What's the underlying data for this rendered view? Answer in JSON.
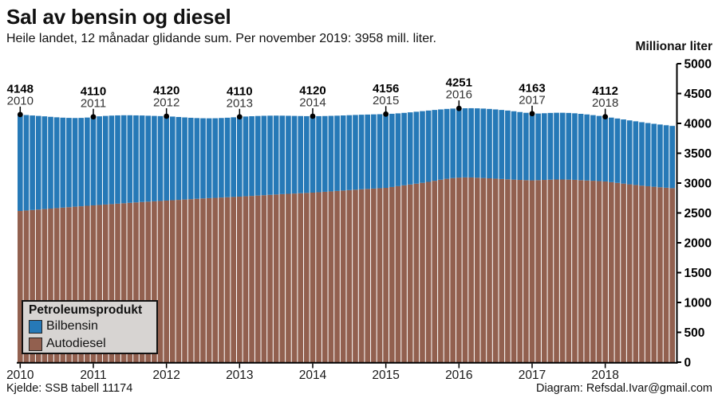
{
  "header": {
    "title": "Sal av bensin og diesel",
    "subtitle": "Heile landet, 12 månadar glidande sum. Per november 2019: 3958 mill. liter."
  },
  "y_axis": {
    "title": "Millionar liter",
    "tick_values": [
      0,
      500,
      1000,
      1500,
      2000,
      2500,
      3000,
      3500,
      4000,
      4500,
      5000
    ],
    "max": 5000
  },
  "x_axis": {
    "year_labels": [
      "2010",
      "2011",
      "2012",
      "2013",
      "2014",
      "2015",
      "2016",
      "2017",
      "2018"
    ]
  },
  "legend": {
    "title": "Petroleumsprodukt",
    "items": [
      {
        "label": "Bilbensin",
        "color": "#2679b7"
      },
      {
        "label": "Autodiesel",
        "color": "#92604f"
      }
    ]
  },
  "footer": {
    "source": "Kjelde: SSB tabell 11174",
    "credit": "Diagram: Refsdal.Ivar@gmail.com"
  },
  "annotations": [
    {
      "year": "2010",
      "value": "4148",
      "month_index": 0
    },
    {
      "year": "2011",
      "value": "4110",
      "month_index": 12
    },
    {
      "year": "2012",
      "value": "4120",
      "month_index": 24
    },
    {
      "year": "2013",
      "value": "4110",
      "month_index": 36
    },
    {
      "year": "2014",
      "value": "4120",
      "month_index": 48
    },
    {
      "year": "2015",
      "value": "4156",
      "month_index": 60
    },
    {
      "year": "2016",
      "value": "4251",
      "month_index": 72
    },
    {
      "year": "2017",
      "value": "4163",
      "month_index": 84
    },
    {
      "year": "2018",
      "value": "4112",
      "month_index": 96
    }
  ],
  "chart_data": {
    "type": "bar",
    "stacked": true,
    "title": "Sal av bensin og diesel",
    "ylabel": "Millionar liter",
    "ylim": [
      0,
      5000
    ],
    "grid": false,
    "legend_position": "bottom-left",
    "unit": "mill. liter (12-month rolling sum)",
    "months_start": "2010-12",
    "months_end": "2019-11",
    "n_bars": 108,
    "totals": [
      4148,
      4140,
      4132,
      4125,
      4118,
      4110,
      4102,
      4096,
      4092,
      4090,
      4092,
      4098,
      4110,
      4118,
      4125,
      4130,
      4134,
      4136,
      4136,
      4134,
      4132,
      4128,
      4125,
      4122,
      4120,
      4114,
      4107,
      4100,
      4094,
      4089,
      4086,
      4085,
      4086,
      4090,
      4095,
      4102,
      4110,
      4115,
      4120,
      4124,
      4127,
      4129,
      4130,
      4129,
      4127,
      4125,
      4123,
      4121,
      4120,
      4121,
      4123,
      4126,
      4129,
      4133,
      4137,
      4141,
      4145,
      4148,
      4151,
      4154,
      4156,
      4161,
      4168,
      4176,
      4185,
      4195,
      4205,
      4215,
      4225,
      4234,
      4242,
      4248,
      4251,
      4253,
      4254,
      4252,
      4248,
      4242,
      4234,
      4225,
      4215,
      4203,
      4190,
      4177,
      4163,
      4165,
      4170,
      4175,
      4178,
      4178,
      4175,
      4169,
      4160,
      4150,
      4138,
      4125,
      4112,
      4097,
      4082,
      4066,
      4050,
      4035,
      4020,
      4006,
      3993,
      3981,
      3969,
      3958
    ],
    "series": [
      {
        "name": "Autodiesel",
        "color": "#92604f",
        "values": [
          2533,
          2541,
          2549,
          2557,
          2565,
          2573,
          2581,
          2589,
          2597,
          2605,
          2612,
          2620,
          2627,
          2634,
          2641,
          2648,
          2655,
          2662,
          2669,
          2676,
          2683,
          2689,
          2695,
          2701,
          2707,
          2713,
          2719,
          2725,
          2731,
          2737,
          2743,
          2748,
          2753,
          2758,
          2763,
          2768,
          2773,
          2779,
          2785,
          2791,
          2797,
          2803,
          2809,
          2815,
          2820,
          2825,
          2830,
          2835,
          2840,
          2847,
          2854,
          2861,
          2868,
          2875,
          2882,
          2889,
          2896,
          2902,
          2908,
          2914,
          2920,
          2934,
          2948,
          2962,
          2976,
          2990,
          3004,
          3020,
          3038,
          3056,
          3072,
          3084,
          3092,
          3095,
          3094,
          3090,
          3085,
          3080,
          3074,
          3068,
          3063,
          3058,
          3053,
          3049,
          3046,
          3049,
          3053,
          3057,
          3060,
          3060,
          3058,
          3054,
          3049,
          3044,
          3039,
          3033,
          3027,
          3015,
          3003,
          2991,
          2979,
          2968,
          2957,
          2947,
          2938,
          2930,
          2922,
          2915
        ]
      },
      {
        "name": "Bilbensin",
        "color": "#2679b7",
        "derived": "totals minus Autodiesel values"
      }
    ]
  }
}
